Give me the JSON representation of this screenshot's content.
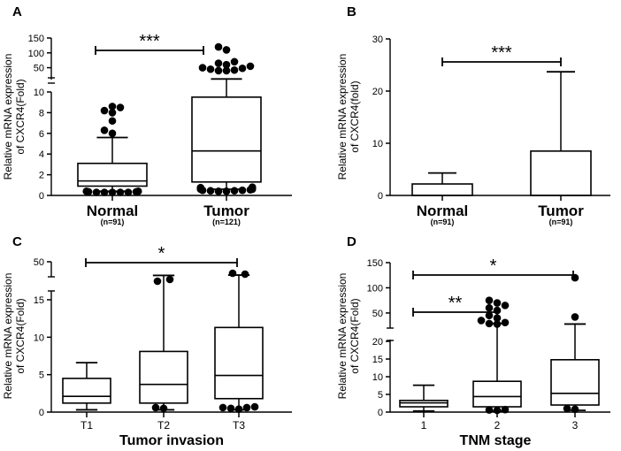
{
  "chart_data": [
    {
      "panel": "A",
      "type": "box",
      "ylabel_line1": "Relative mRNA expression",
      "ylabel_line2": "of CXCR4(Fold)",
      "yticks_upper": [
        "150",
        "100",
        "50"
      ],
      "yticks_lower": [
        "10",
        "8",
        "6",
        "4",
        "2",
        "0"
      ],
      "ylim_lower": [
        0,
        10
      ],
      "ylim_upper": [
        10,
        150
      ],
      "categories": [
        "Normal",
        "Tumor"
      ],
      "n_labels": [
        "(n=91)",
        "(n=121)"
      ],
      "boxes": [
        {
          "whisker_low": 0.4,
          "q1": 0.9,
          "median": 1.4,
          "q3": 3.1,
          "whisker_high": 5.6,
          "outliers": [
            0.3,
            0.3,
            0.3,
            0.3,
            0.3,
            0.35,
            0.35,
            0.4,
            0.4,
            6.0,
            6.3,
            7.2,
            8.0,
            8.2,
            8.5,
            8.6
          ]
        },
        {
          "whisker_low": 0.6,
          "q1": 1.3,
          "median": 4.3,
          "q3": 9.5,
          "whisker_high": 12,
          "outliers": [
            0.4,
            0.4,
            0.45,
            0.45,
            0.5,
            0.5,
            0.55,
            0.6,
            0.6,
            0.7,
            0.7,
            0.75,
            0.8,
            40,
            40,
            42,
            45,
            48,
            50,
            55,
            60,
            65,
            70,
            110,
            120
          ]
        }
      ],
      "significance": "***"
    },
    {
      "panel": "B",
      "type": "bar",
      "ylabel_line1": "Relative mRNA expression",
      "ylabel_line2": "of CXCR4(fold)",
      "yticks": [
        "30",
        "20",
        "10",
        "0"
      ],
      "ylim": [
        0,
        30
      ],
      "categories": [
        "Normal",
        "Tumor"
      ],
      "n_labels": [
        "(n=91)",
        "(n=91)"
      ],
      "values": [
        2.2,
        8.5
      ],
      "error_upper": [
        4.3,
        23.7
      ],
      "significance": "***"
    },
    {
      "panel": "C",
      "type": "box",
      "ylabel_line1": "Relative mRNA expression",
      "ylabel_line2": "of CXCR4(Fold)",
      "yticks_upper": [
        "50"
      ],
      "yticks_lower": [
        "15",
        "10",
        "5",
        "0"
      ],
      "ylim_lower": [
        0,
        15
      ],
      "categories": [
        "T1",
        "T2",
        "T3"
      ],
      "xlabel": "Tumor invasion",
      "boxes": [
        {
          "whisker_low": 0.3,
          "q1": 1.2,
          "median": 2.1,
          "q3": 4.5,
          "whisker_high": 6.6,
          "outliers": []
        },
        {
          "whisker_low": 0.3,
          "q1": 1.2,
          "median": 3.7,
          "q3": 8.1,
          "whisker_high": 16.2,
          "outliers": [
            0.5,
            0.6,
            17.1,
            17.3
          ]
        },
        {
          "whisker_low": 0.3,
          "q1": 1.8,
          "median": 4.9,
          "q3": 11.3,
          "whisker_high": 17.0,
          "outliers": [
            0.4,
            0.5,
            0.6,
            0.6,
            0.7,
            17.9,
            18.0
          ]
        }
      ],
      "significance": "*"
    },
    {
      "panel": "D",
      "type": "box",
      "ylabel_line1": "Relative mRNA expression",
      "ylabel_line2": "of CXCR4(Fold)",
      "yticks_upper": [
        "150",
        "100",
        "50"
      ],
      "yticks_lower": [
        "20",
        "15",
        "10",
        "5",
        "0"
      ],
      "ylim_lower": [
        0,
        20
      ],
      "ylim_upper": [
        20,
        150
      ],
      "categories": [
        "1",
        "2",
        "3"
      ],
      "xlabel": "TNM stage",
      "boxes": [
        {
          "whisker_low": 0.3,
          "q1": 1.5,
          "median": 2.6,
          "q3": 3.3,
          "whisker_high": 7.6,
          "outliers": []
        },
        {
          "whisker_low": 0.3,
          "q1": 1.5,
          "median": 4.4,
          "q3": 8.7,
          "whisker_high": 29,
          "outliers": [
            0.5,
            0.6,
            0.7,
            28,
            29,
            31,
            35,
            40,
            45,
            55,
            60,
            65,
            70,
            75
          ]
        },
        {
          "whisker_low": 0.5,
          "q1": 2.0,
          "median": 5.3,
          "q3": 14.8,
          "whisker_high": 28,
          "outliers": [
            0.8,
            1.0,
            42,
            120
          ]
        }
      ],
      "significance_far": "*",
      "significance_near": "**"
    }
  ]
}
